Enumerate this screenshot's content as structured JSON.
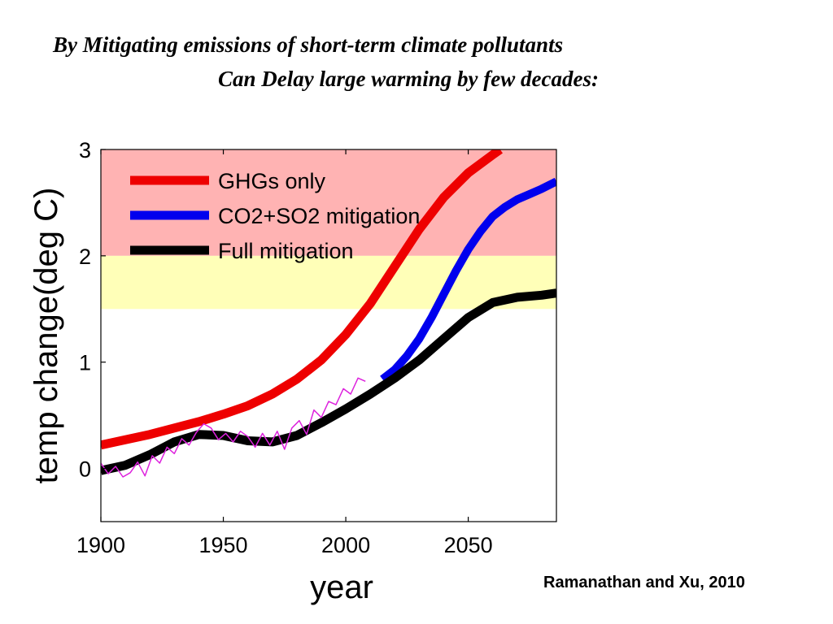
{
  "slide": {
    "title_line1": "By Mitigating emissions of short-term climate pollutants",
    "title_line2": "Can Delay large warming by few decades:",
    "credit": "Ramanathan and Xu, 2010"
  },
  "chart_data": {
    "type": "line",
    "xlabel": "year",
    "ylabel": "temp change(deg C)",
    "xlim": [
      1900,
      2086
    ],
    "ylim": [
      -0.5,
      3
    ],
    "xticks": [
      1900,
      1950,
      2000,
      2050
    ],
    "yticks": [
      0,
      1,
      2,
      3
    ],
    "grid": false,
    "legend_position": "top-left",
    "bands": [
      {
        "from": 2,
        "to": 3,
        "color": "#ffb3b3"
      },
      {
        "from": 1.5,
        "to": 2,
        "color": "#ffffb8"
      }
    ],
    "series": [
      {
        "name": "GHGs only",
        "color": "#ee0000",
        "x": [
          1900,
          1910,
          1920,
          1930,
          1940,
          1950,
          1960,
          1970,
          1980,
          1990,
          2000,
          2010,
          2020,
          2030,
          2040,
          2050,
          2060,
          2063
        ],
        "y": [
          0.22,
          0.27,
          0.32,
          0.38,
          0.44,
          0.51,
          0.59,
          0.7,
          0.84,
          1.02,
          1.26,
          1.55,
          1.9,
          2.25,
          2.55,
          2.78,
          2.95,
          3.0
        ]
      },
      {
        "name": "CO2+SO2 mitigation",
        "color": "#0000ee",
        "x": [
          2015,
          2020,
          2025,
          2030,
          2035,
          2040,
          2045,
          2050,
          2055,
          2060,
          2065,
          2070,
          2075,
          2080,
          2086
        ],
        "y": [
          0.84,
          0.93,
          1.06,
          1.22,
          1.42,
          1.64,
          1.86,
          2.06,
          2.23,
          2.37,
          2.46,
          2.53,
          2.58,
          2.63,
          2.7
        ]
      },
      {
        "name": "Full mitigation",
        "color": "#000000",
        "x": [
          1900,
          1910,
          1920,
          1930,
          1940,
          1950,
          1960,
          1970,
          1980,
          1990,
          2000,
          2010,
          2020,
          2030,
          2040,
          2050,
          2060,
          2070,
          2080,
          2086
        ],
        "y": [
          -0.02,
          0.03,
          0.13,
          0.25,
          0.32,
          0.31,
          0.26,
          0.25,
          0.31,
          0.43,
          0.56,
          0.7,
          0.85,
          1.02,
          1.22,
          1.42,
          1.56,
          1.61,
          1.63,
          1.65
        ]
      },
      {
        "color": "#dd22dd",
        "x": [
          1900,
          1903,
          1906,
          1909,
          1912,
          1915,
          1918,
          1921,
          1924,
          1927,
          1930,
          1933,
          1936,
          1939,
          1942,
          1945,
          1948,
          1951,
          1954,
          1957,
          1960,
          1963,
          1966,
          1969,
          1972,
          1975,
          1978,
          1981,
          1984,
          1987,
          1990,
          1993,
          1996,
          1999,
          2002,
          2005,
          2008
        ],
        "y": [
          0.05,
          -0.05,
          0.02,
          -0.08,
          -0.04,
          0.06,
          -0.07,
          0.12,
          0.05,
          0.2,
          0.14,
          0.28,
          0.22,
          0.34,
          0.42,
          0.38,
          0.27,
          0.33,
          0.25,
          0.35,
          0.3,
          0.2,
          0.33,
          0.22,
          0.35,
          0.18,
          0.38,
          0.45,
          0.32,
          0.55,
          0.48,
          0.63,
          0.6,
          0.75,
          0.7,
          0.85,
          0.82
        ]
      }
    ]
  }
}
